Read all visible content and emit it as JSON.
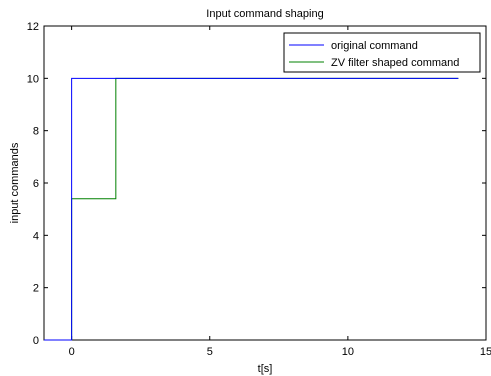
{
  "chart_data": {
    "type": "line",
    "title": "Input command shaping",
    "xlabel": "t[s]",
    "ylabel": "input commands",
    "xlim": [
      -1,
      15
    ],
    "ylim": [
      0,
      12
    ],
    "xticks": [
      0,
      5,
      10,
      15
    ],
    "yticks": [
      0,
      2,
      4,
      6,
      8,
      10,
      12
    ],
    "grid": false,
    "legend_position": "top-right",
    "series": [
      {
        "name": "original command",
        "color": "#0000ff",
        "style": "step",
        "x": [
          -1,
          0,
          0,
          14
        ],
        "y": [
          0,
          0,
          10,
          10
        ]
      },
      {
        "name": "ZV filter shaped command",
        "color": "#008000",
        "style": "step",
        "x": [
          -1,
          0,
          0,
          1.6,
          1.6,
          14
        ],
        "y": [
          0,
          0,
          5.4,
          5.4,
          10,
          10
        ]
      }
    ]
  }
}
